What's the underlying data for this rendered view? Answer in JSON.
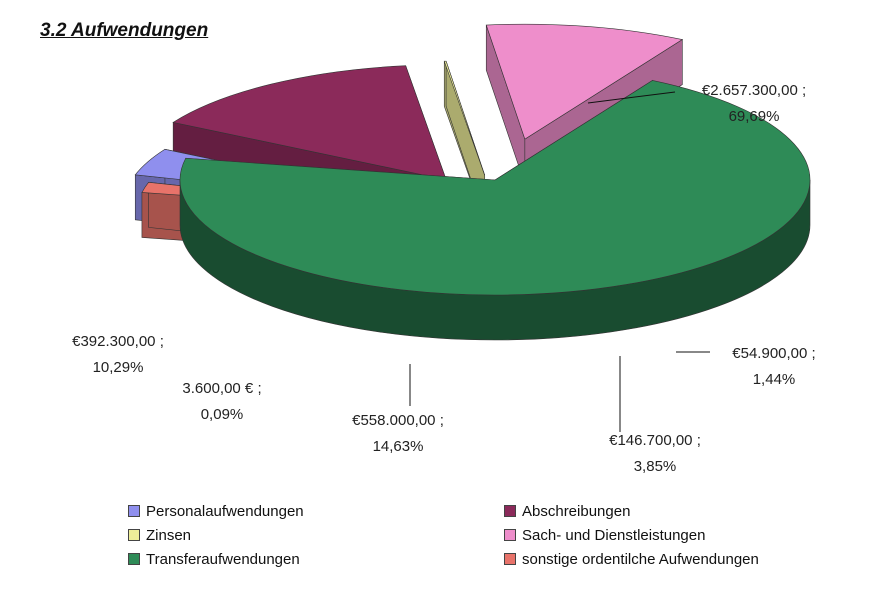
{
  "page_title": "3.2 Aufwendungen",
  "chart_data": {
    "type": "pie",
    "title": "",
    "slices": [
      {
        "name": "Transferaufwendungen",
        "value": 2657300.0,
        "percent": 69.69,
        "value_label": "€2.657.300,00 ;",
        "percent_label": "69,69%",
        "color": "#2e8b57"
      },
      {
        "name": "sonstige ordentilche Aufwendungen",
        "value": 54900.0,
        "percent": 1.44,
        "value_label": "€54.900,00 ;",
        "percent_label": "1,44%",
        "color": "#e8736a"
      },
      {
        "name": "Personalaufwendungen",
        "value": 146700.0,
        "percent": 3.85,
        "value_label": "€146.700,00 ;",
        "percent_label": "3,85%",
        "color": "#8f8fee"
      },
      {
        "name": "Abschreibungen",
        "value": 558000.0,
        "percent": 14.63,
        "value_label": "€558.000,00 ;",
        "percent_label": "14,63%",
        "color": "#8b2a5a"
      },
      {
        "name": "Zinsen",
        "value": 3600.0,
        "percent": 0.09,
        "value_label": "3.600,00 € ;",
        "percent_label": "0,09%",
        "color": "#eeee99"
      },
      {
        "name": "Sach- und Dienstleistungen",
        "value": 392300.0,
        "percent": 10.29,
        "value_label": "€392.300,00 ;",
        "percent_label": "10,29%",
        "color": "#ee8ecb"
      }
    ],
    "legend_placement": "bottom",
    "legend": [
      {
        "label": "Personalaufwendungen",
        "color": "#8f8fee"
      },
      {
        "label": "Abschreibungen",
        "color": "#8b2a5a"
      },
      {
        "label": "Zinsen",
        "color": "#eeee99"
      },
      {
        "label": "Sach- und Dienstleistungen",
        "color": "#ee8ecb"
      },
      {
        "label": "Transferaufwendungen",
        "color": "#2e8b57"
      },
      {
        "label": "sonstige ordentilche Aufwendungen",
        "color": "#e8736a"
      }
    ]
  }
}
